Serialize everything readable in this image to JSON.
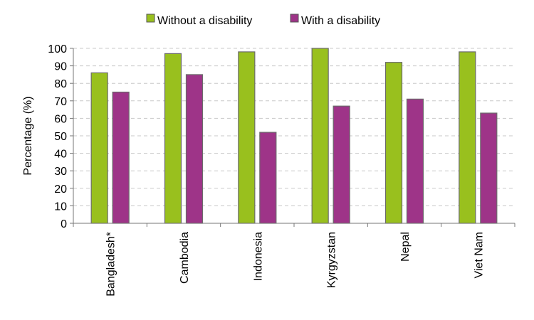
{
  "chart_data": {
    "type": "bar",
    "title": "",
    "xlabel": "",
    "ylabel": "Percentage (%)",
    "ylim": [
      0,
      100
    ],
    "ytick_step": 10,
    "grid": "horizontal dashed",
    "legend_position": "top",
    "categories": [
      "Bangladesh*",
      "Cambodia",
      "Indonesia",
      "Kyrgyzstan",
      "Nepal",
      "Viet Nam"
    ],
    "series": [
      {
        "name": "Without a disability",
        "color": "#99c01e",
        "values": [
          86,
          97,
          98,
          100,
          92,
          98
        ]
      },
      {
        "name": "With a disability",
        "color": "#9e3488",
        "values": [
          75,
          85,
          52,
          67,
          71,
          63
        ]
      }
    ]
  }
}
